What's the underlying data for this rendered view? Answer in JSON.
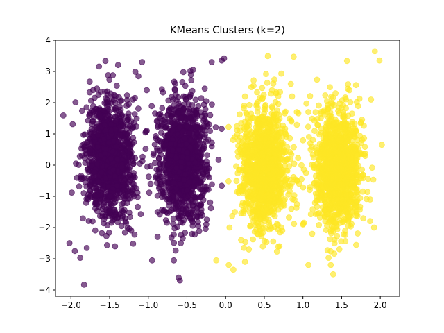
{
  "chart_data": {
    "type": "scatter",
    "title": "KMeans Clusters (k=2)",
    "xlabel": "",
    "ylabel": "",
    "xlim": [
      -2.2,
      2.25
    ],
    "ylim": [
      -4.2,
      4.0
    ],
    "x_ticks": [
      -2.0,
      -1.5,
      -1.0,
      -0.5,
      0.0,
      0.5,
      1.0,
      1.5,
      2.0
    ],
    "x_tick_labels": [
      "−2.0",
      "−1.5",
      "−1.0",
      "−0.5",
      "0.0",
      "0.5",
      "1.0",
      "1.5",
      "2.0"
    ],
    "y_ticks": [
      -4,
      -3,
      -2,
      -1,
      0,
      1,
      2,
      3,
      4
    ],
    "y_tick_labels": [
      "−4",
      "−3",
      "−2",
      "−1",
      "0",
      "1",
      "2",
      "3",
      "4"
    ],
    "grid": false,
    "legend": "none",
    "point_alpha": 0.65,
    "series": [
      {
        "cluster": 0,
        "color": "#440154",
        "blobs": [
          {
            "x_center": -1.5,
            "x_spread": 0.15,
            "y_center": 0.2,
            "y_spread": 0.95
          },
          {
            "x_center": -0.55,
            "x_spread": 0.15,
            "y_center": 0.2,
            "y_spread": 0.95
          }
        ],
        "points": [
          {
            "x": -1.83,
            "y": -3.83
          },
          {
            "x": -1.88,
            "y": -2.97
          },
          {
            "x": -1.95,
            "y": -2.75
          },
          {
            "x": -2.02,
            "y": -2.5
          },
          {
            "x": -1.99,
            "y": -0.88
          },
          {
            "x": -1.43,
            "y": -2.6
          },
          {
            "x": -1.52,
            "y": 2.88
          },
          {
            "x": -1.2,
            "y": 2.1
          },
          {
            "x": -1.08,
            "y": 3.3
          },
          {
            "x": -1.02,
            "y": 2.4
          },
          {
            "x": -0.95,
            "y": -3.05
          },
          {
            "x": -0.88,
            "y": -2.3
          },
          {
            "x": -0.58,
            "y": -2.5
          },
          {
            "x": -0.67,
            "y": -3.05
          },
          {
            "x": -0.42,
            "y": 3.05
          },
          {
            "x": -0.27,
            "y": 2.45
          },
          {
            "x": -0.25,
            "y": 2.05
          },
          {
            "x": -0.18,
            "y": 3.3
          },
          {
            "x": -0.05,
            "y": 3.35
          },
          {
            "x": -0.02,
            "y": 3.42
          },
          {
            "x": -0.18,
            "y": 0.6
          },
          {
            "x": -0.2,
            "y": 1.6
          },
          {
            "x": -1.75,
            "y": 0.5
          },
          {
            "x": -1.72,
            "y": -1.8
          },
          {
            "x": -1.28,
            "y": 1.9
          },
          {
            "x": -0.97,
            "y": -0.6
          },
          {
            "x": -0.85,
            "y": 1.5
          },
          {
            "x": -1.02,
            "y": 1.1
          },
          {
            "x": -0.88,
            "y": -1.5
          },
          {
            "x": -0.2,
            "y": -1.2
          },
          {
            "x": -0.25,
            "y": -1.9
          },
          {
            "x": -1.3,
            "y": -1.7
          },
          {
            "x": -1.68,
            "y": 1.8
          }
        ]
      },
      {
        "cluster": 1,
        "color": "#fde725",
        "blobs": [
          {
            "x_center": 0.5,
            "x_spread": 0.15,
            "y_center": -0.1,
            "y_spread": 0.95
          },
          {
            "x_center": 1.45,
            "x_spread": 0.15,
            "y_center": -0.1,
            "y_spread": 0.95
          }
        ],
        "points": [
          {
            "x": 0.88,
            "y": 3.47
          },
          {
            "x": 0.72,
            "y": 2.93
          },
          {
            "x": 1.93,
            "y": 3.65
          },
          {
            "x": 1.99,
            "y": 3.35
          },
          {
            "x": 0.1,
            "y": -3.35
          },
          {
            "x": 0.04,
            "y": -3.2
          },
          {
            "x": -0.12,
            "y": -3.05
          },
          {
            "x": 0.25,
            "y": -3.1
          },
          {
            "x": 0.3,
            "y": -2.7
          },
          {
            "x": 1.07,
            "y": -3.2
          },
          {
            "x": 1.36,
            "y": -3.2
          },
          {
            "x": 1.92,
            "y": -2.0
          },
          {
            "x": 2.02,
            "y": 0.65
          },
          {
            "x": 0.12,
            "y": 0.9
          },
          {
            "x": 0.05,
            "y": -2.0
          },
          {
            "x": 0.12,
            "y": -1.5
          },
          {
            "x": 0.92,
            "y": 1.7
          },
          {
            "x": 0.85,
            "y": -1.4
          },
          {
            "x": 1.0,
            "y": -1.9
          },
          {
            "x": 1.07,
            "y": 1.7
          },
          {
            "x": 1.1,
            "y": 0.5
          },
          {
            "x": 1.88,
            "y": 2.1
          },
          {
            "x": 1.12,
            "y": -2.2
          },
          {
            "x": 0.25,
            "y": 2.2
          },
          {
            "x": 0.8,
            "y": 0.2
          },
          {
            "x": 1.87,
            "y": -1.1
          },
          {
            "x": 0.95,
            "y": -0.6
          },
          {
            "x": 0.2,
            "y": -2.4
          },
          {
            "x": 1.6,
            "y": 2.4
          },
          {
            "x": 0.6,
            "y": 2.4
          }
        ]
      }
    ]
  }
}
